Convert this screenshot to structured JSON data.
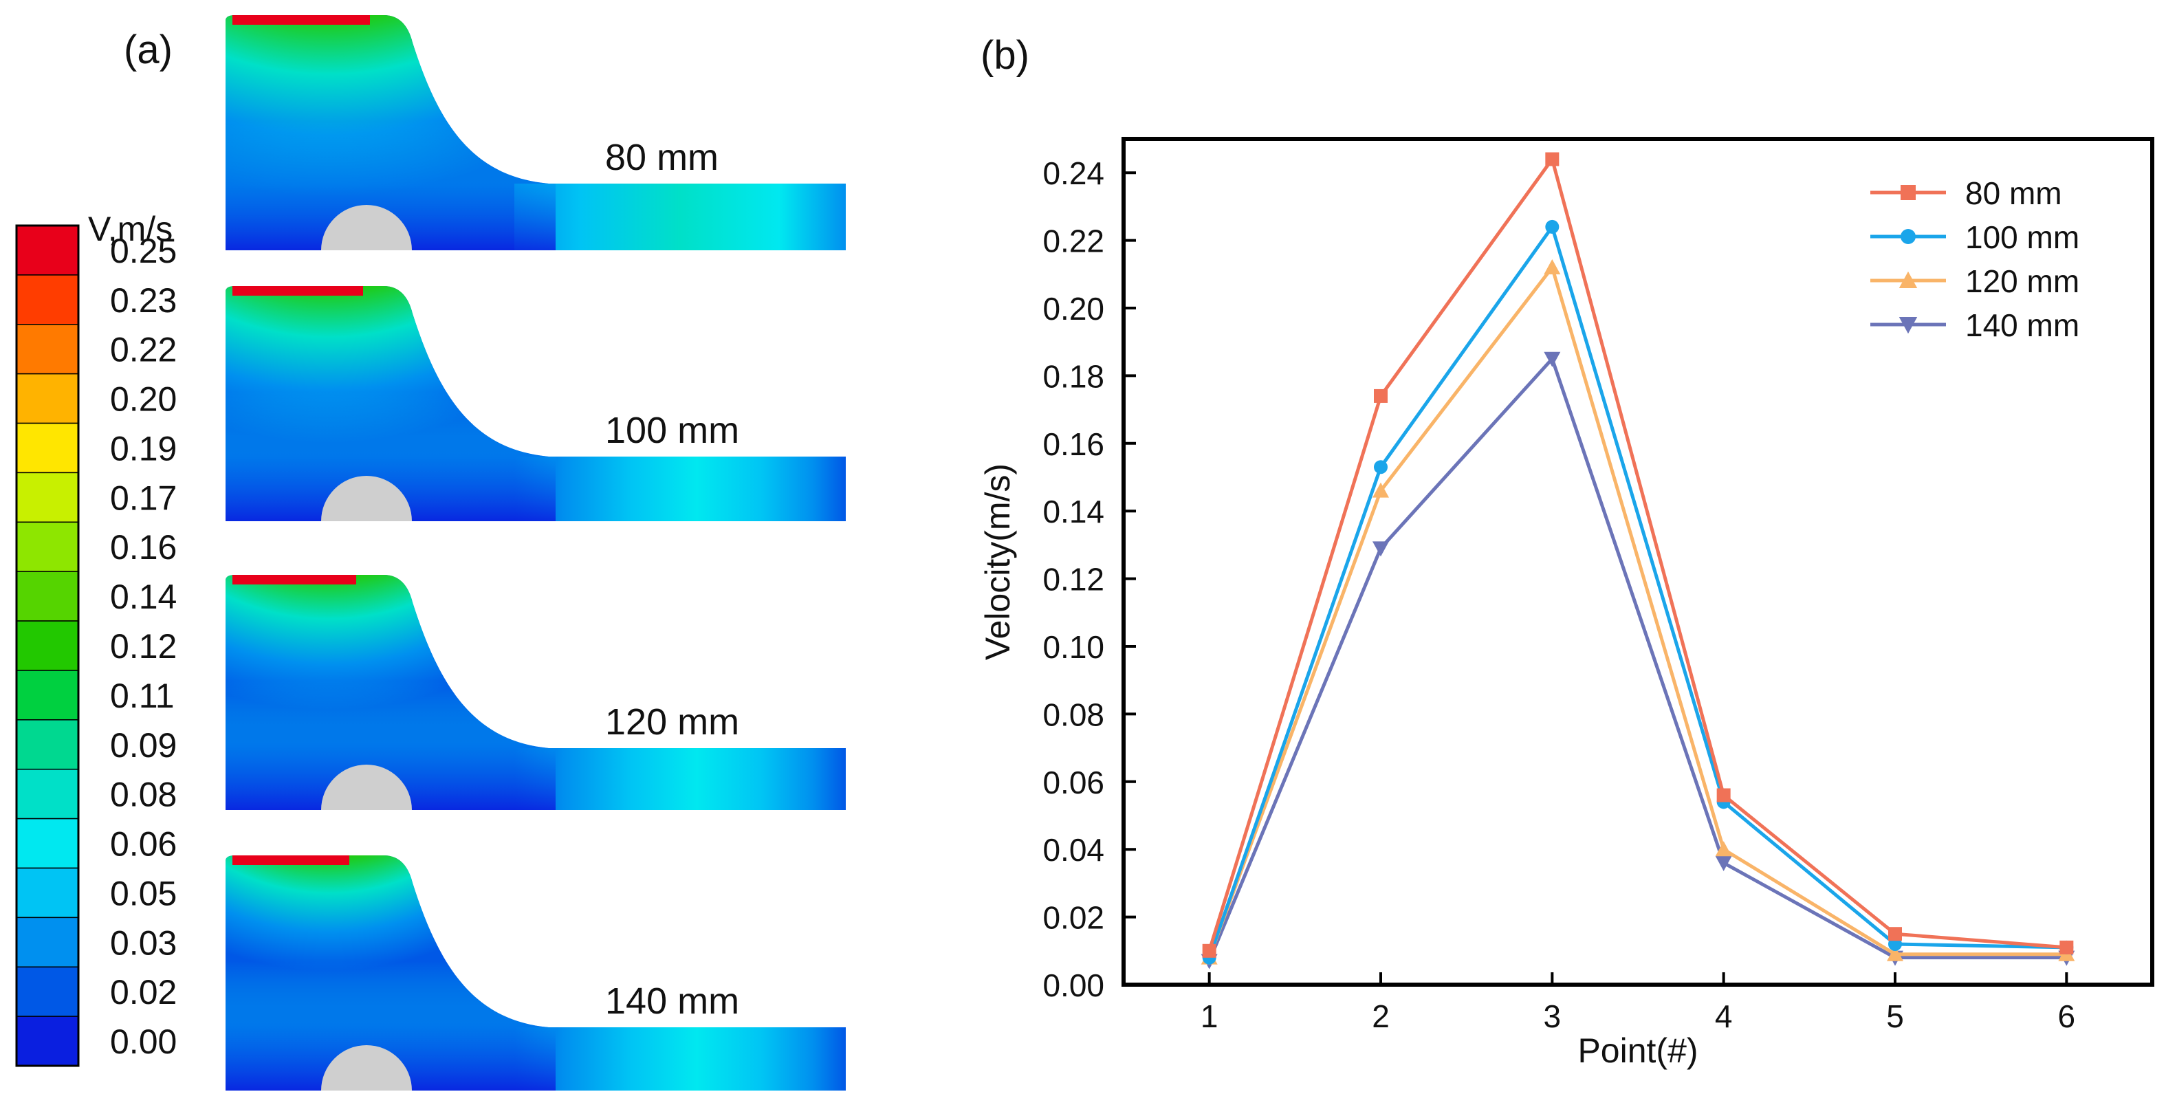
{
  "panel_a": {
    "label": "(a)",
    "legend_title": "V,m/s",
    "legend_ticks": [
      "0.25",
      "0.23",
      "0.22",
      "0.20",
      "0.19",
      "0.17",
      "0.16",
      "0.14",
      "0.12",
      "0.11",
      "0.09",
      "0.08",
      "0.06",
      "0.05",
      "0.03",
      "0.02",
      "0.00"
    ],
    "legend_colors": [
      "#e8001a",
      "#ff3d00",
      "#ff7a00",
      "#ffb300",
      "#ffe600",
      "#c8f000",
      "#8ee600",
      "#55d400",
      "#22c800",
      "#00d040",
      "#00d890",
      "#00e0c8",
      "#00e8f0",
      "#00c4f4",
      "#0090ef",
      "#0058e6",
      "#0a1fe0"
    ],
    "panels": [
      {
        "label": "80 mm"
      },
      {
        "label": "100 mm"
      },
      {
        "label": "120 mm"
      },
      {
        "label": "140 mm"
      }
    ]
  },
  "chart_data": {
    "type": "line",
    "label": "(b)",
    "xlabel": "Point(#)",
    "ylabel": "Velocity(m/s)",
    "x": [
      1,
      2,
      3,
      4,
      5,
      6
    ],
    "xlim": [
      0.5,
      6.5
    ],
    "ylim": [
      0,
      0.25
    ],
    "yticks": [
      "0.00",
      "0.02",
      "0.04",
      "0.06",
      "0.08",
      "0.10",
      "0.12",
      "0.14",
      "0.16",
      "0.18",
      "0.20",
      "0.22",
      "0.24"
    ],
    "xticks": [
      "1",
      "2",
      "3",
      "4",
      "5",
      "6"
    ],
    "legend_position": "top-right",
    "series": [
      {
        "name": "80 mm",
        "color": "#f07257",
        "marker": "square",
        "values": [
          0.01,
          0.174,
          0.244,
          0.056,
          0.015,
          0.011
        ]
      },
      {
        "name": "100 mm",
        "color": "#1aa5ea",
        "marker": "circle",
        "values": [
          0.008,
          0.153,
          0.224,
          0.054,
          0.012,
          0.011
        ]
      },
      {
        "name": "120 mm",
        "color": "#f9b468",
        "marker": "triangle-up",
        "values": [
          0.008,
          0.146,
          0.212,
          0.04,
          0.009,
          0.009
        ]
      },
      {
        "name": "140 mm",
        "color": "#6b74b8",
        "marker": "triangle-down",
        "values": [
          0.007,
          0.129,
          0.185,
          0.036,
          0.008,
          0.008
        ]
      }
    ]
  }
}
